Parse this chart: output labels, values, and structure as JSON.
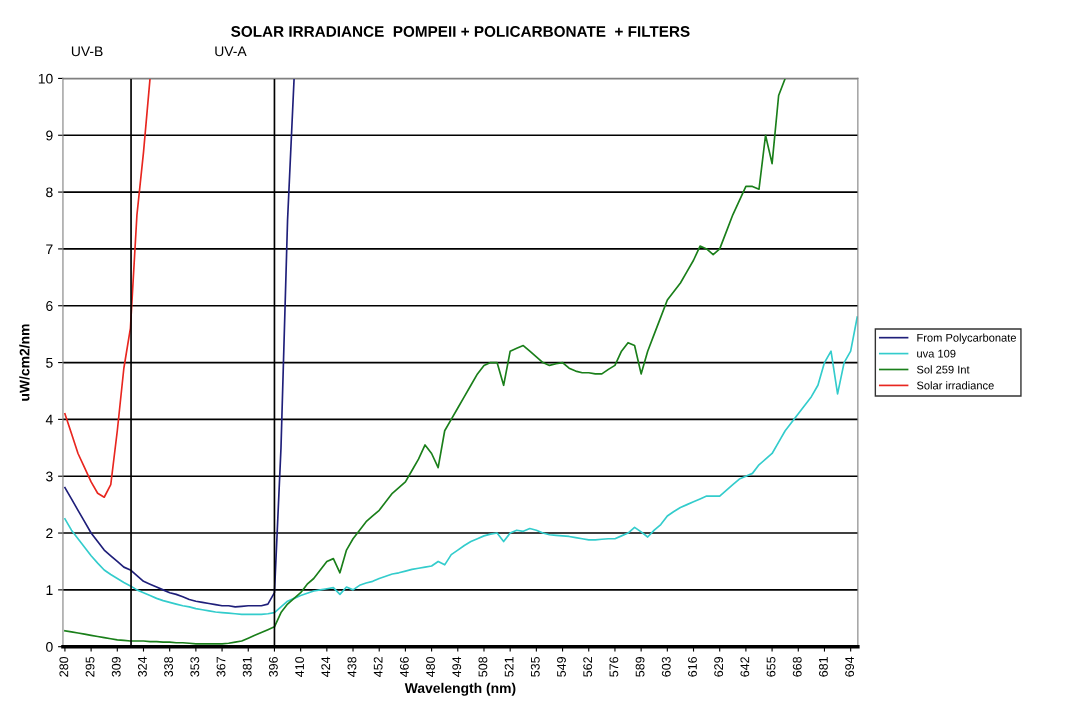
{
  "chart_data": {
    "type": "line",
    "title": "SOLAR IRRADIANCE  POMPEII + POLICARBONATE  + FILTERS",
    "xlabel": "Wavelength (nm)",
    "ylabel": "uW/cm2/nm",
    "categories": [
      "280",
      null,
      null,
      null,
      "295",
      null,
      null,
      null,
      "309",
      null,
      null,
      null,
      "324",
      null,
      null,
      null,
      "338",
      null,
      null,
      null,
      "353",
      null,
      null,
      null,
      "367",
      null,
      null,
      null,
      "381",
      null,
      null,
      null,
      "396",
      null,
      null,
      null,
      "410",
      null,
      null,
      null,
      "424",
      null,
      null,
      null,
      "438",
      null,
      null,
      null,
      "452",
      null,
      null,
      null,
      "466",
      null,
      null,
      null,
      "480",
      null,
      null,
      null,
      "494",
      null,
      null,
      null,
      "508",
      null,
      null,
      null,
      "521",
      null,
      null,
      null,
      "535",
      null,
      null,
      null,
      "549",
      null,
      null,
      null,
      "562",
      null,
      null,
      null,
      "576",
      null,
      null,
      null,
      "589",
      null,
      null,
      null,
      "603",
      null,
      null,
      null,
      "616",
      null,
      null,
      null,
      "629",
      null,
      null,
      null,
      "642",
      null,
      null,
      null,
      "655",
      null,
      null,
      null,
      "668",
      null,
      null,
      null,
      "681",
      null,
      null,
      null,
      "694",
      null
    ],
    "series": [
      {
        "name": "From Polycarbonate",
        "color": "#1f1f7a",
        "values": [
          2.8,
          2.6,
          2.4,
          2.2,
          2.0,
          1.85,
          1.7,
          1.6,
          1.5,
          1.4,
          1.35,
          1.25,
          1.15,
          1.1,
          1.05,
          1.0,
          0.95,
          0.92,
          0.88,
          0.83,
          0.8,
          0.78,
          0.76,
          0.74,
          0.72,
          0.72,
          0.7,
          0.71,
          0.72,
          0.72,
          0.72,
          0.75,
          0.95,
          3.5,
          7.5,
          10,
          null,
          null,
          null,
          null,
          null,
          null,
          null,
          null,
          null,
          null,
          null,
          null,
          null,
          null,
          null,
          null,
          null,
          null,
          null,
          null,
          null,
          null,
          null,
          null,
          null,
          null,
          null,
          null,
          null,
          null,
          null,
          null,
          null,
          null,
          null,
          null,
          null,
          null,
          null,
          null,
          null,
          null,
          null,
          null,
          null,
          null,
          null,
          null,
          null,
          null,
          null,
          null,
          null,
          null,
          null,
          null,
          null,
          null,
          null,
          null,
          null,
          null,
          null,
          null,
          null,
          null,
          null,
          null,
          null,
          null,
          null,
          null,
          null,
          null,
          null,
          null,
          null,
          null,
          null,
          null,
          null,
          null,
          null,
          null,
          null,
          null
        ]
      },
      {
        "name": "uva 109",
        "color": "#33cccc",
        "values": [
          2.25,
          2.05,
          1.9,
          1.75,
          1.6,
          1.47,
          1.35,
          1.27,
          1.2,
          1.13,
          1.07,
          1.0,
          0.95,
          0.9,
          0.85,
          0.81,
          0.78,
          0.75,
          0.72,
          0.7,
          0.67,
          0.65,
          0.63,
          0.61,
          0.6,
          0.59,
          0.58,
          0.57,
          0.57,
          0.57,
          0.57,
          0.58,
          0.6,
          0.7,
          0.8,
          0.85,
          0.9,
          0.94,
          0.98,
          1.0,
          1.02,
          1.04,
          0.92,
          1.05,
          1.0,
          1.08,
          1.12,
          1.15,
          1.2,
          1.24,
          1.28,
          1.3,
          1.33,
          1.36,
          1.38,
          1.4,
          1.42,
          1.5,
          1.44,
          1.62,
          1.7,
          1.78,
          1.85,
          1.9,
          1.95,
          1.98,
          2.0,
          1.85,
          2.0,
          2.05,
          2.03,
          2.08,
          2.05,
          2.0,
          1.97,
          1.96,
          1.95,
          1.94,
          1.92,
          1.9,
          1.88,
          1.88,
          1.89,
          1.9,
          1.9,
          1.95,
          2.0,
          2.1,
          2.02,
          1.93,
          2.05,
          2.15,
          2.3,
          2.38,
          2.45,
          2.5,
          2.55,
          2.6,
          2.65,
          2.65,
          2.65,
          2.75,
          2.85,
          2.95,
          3.0,
          3.05,
          3.2,
          3.3,
          3.4,
          3.6,
          3.8,
          3.95,
          4.1,
          4.25,
          4.4,
          4.6,
          5.0,
          5.2,
          4.45,
          5.0,
          5.2,
          5.8
        ]
      },
      {
        "name": "Sol 259 Int",
        "color": "#1a7f1a",
        "values": [
          0.28,
          0.26,
          0.24,
          0.22,
          0.2,
          0.18,
          0.16,
          0.14,
          0.12,
          0.11,
          0.1,
          0.1,
          0.1,
          0.09,
          0.09,
          0.08,
          0.08,
          0.07,
          0.07,
          0.06,
          0.05,
          0.05,
          0.05,
          0.05,
          0.05,
          0.06,
          0.08,
          0.1,
          0.15,
          0.2,
          0.25,
          0.3,
          0.35,
          0.6,
          0.75,
          0.85,
          0.95,
          1.1,
          1.2,
          1.35,
          1.5,
          1.55,
          1.3,
          1.7,
          1.9,
          2.05,
          2.2,
          2.3,
          2.4,
          2.55,
          2.7,
          2.8,
          2.9,
          3.1,
          3.3,
          3.55,
          3.4,
          3.15,
          3.8,
          4.0,
          4.2,
          4.4,
          4.6,
          4.8,
          4.95,
          5.0,
          5.0,
          4.6,
          5.2,
          5.25,
          5.3,
          5.2,
          5.1,
          5.0,
          4.95,
          4.98,
          5.0,
          4.9,
          4.85,
          4.82,
          4.82,
          4.8,
          4.8,
          4.88,
          4.95,
          5.2,
          5.35,
          5.3,
          4.8,
          5.2,
          5.5,
          5.8,
          6.1,
          6.25,
          6.4,
          6.6,
          6.8,
          7.05,
          7.0,
          6.9,
          7.0,
          7.3,
          7.6,
          7.85,
          8.1,
          8.1,
          8.05,
          9.0,
          8.5,
          9.7,
          10,
          null,
          null,
          null,
          null,
          null,
          null,
          null,
          null,
          null,
          null,
          null
        ]
      },
      {
        "name": "Solar irradiance",
        "color": "#e8261f",
        "values": [
          4.1,
          3.75,
          3.4,
          3.15,
          2.9,
          2.7,
          2.63,
          2.85,
          3.8,
          4.9,
          5.6,
          7.6,
          8.7,
          10,
          null,
          null,
          null,
          null,
          null,
          null,
          null,
          null,
          null,
          null,
          null,
          null,
          null,
          null,
          null,
          null,
          null,
          null,
          null,
          null,
          null,
          null,
          null,
          null,
          null,
          null,
          null,
          null,
          null,
          null,
          null,
          null,
          null,
          null,
          null,
          null,
          null,
          null,
          null,
          null,
          null,
          null,
          null,
          null,
          null,
          null,
          null,
          null,
          null,
          null,
          null,
          null,
          null,
          null,
          null,
          null,
          null,
          null,
          null,
          null,
          null,
          null,
          null,
          null,
          null,
          null,
          null,
          null,
          null,
          null,
          null,
          null,
          null,
          null,
          null,
          null,
          null,
          null,
          null,
          null,
          null,
          null,
          null,
          null,
          null,
          null,
          null,
          null,
          null,
          null,
          null,
          null,
          null,
          null,
          null,
          null,
          null,
          null,
          null,
          null,
          null,
          null,
          null,
          null,
          null,
          null,
          null,
          null
        ]
      }
    ],
    "ylim": [
      0,
      10
    ],
    "yticks": [
      0,
      1,
      2,
      3,
      4,
      5,
      6,
      7,
      8,
      9,
      10
    ],
    "annotations": [
      "UV-B"
    ],
    "ref_lines": [
      {
        "axis": "x",
        "value": "396",
        "label": "UV-A",
        "color": "#000000"
      }
    ],
    "grid": "y",
    "legend": "right"
  }
}
